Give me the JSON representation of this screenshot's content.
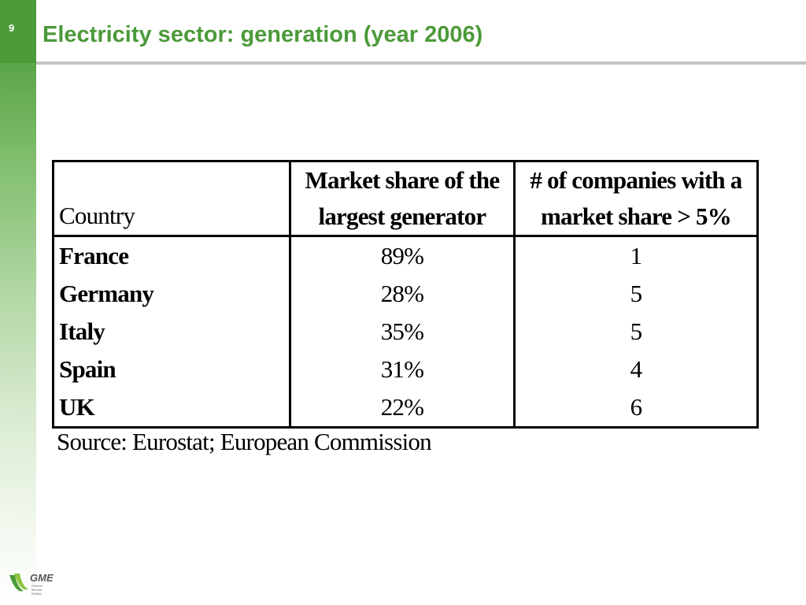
{
  "slide": {
    "page_number": "9",
    "title": "Electricity sector: generation (year 2006)"
  },
  "table": {
    "headers": {
      "country": "Country",
      "market_share_line1": "Market share of the",
      "market_share_line2": "largest generator",
      "companies_line1": "# of companies with a",
      "companies_line2": "market share > 5%"
    },
    "rows": [
      {
        "country": "France",
        "market_share": "89%",
        "companies": "1"
      },
      {
        "country": "Germany",
        "market_share": "28%",
        "companies": "5"
      },
      {
        "country": "Italy",
        "market_share": "35%",
        "companies": "5"
      },
      {
        "country": "Spain",
        "market_share": "31%",
        "companies": "4"
      },
      {
        "country": "UK",
        "market_share": "22%",
        "companies": "6"
      }
    ]
  },
  "source": "Source: Eurostat; European Commission",
  "logo": {
    "text": "GME",
    "subtext": [
      "Gestore",
      "Mercati",
      "Elettrici"
    ]
  },
  "colors": {
    "accent_green": "#4c9a3a",
    "rule_gray": "#c4c4c4"
  }
}
